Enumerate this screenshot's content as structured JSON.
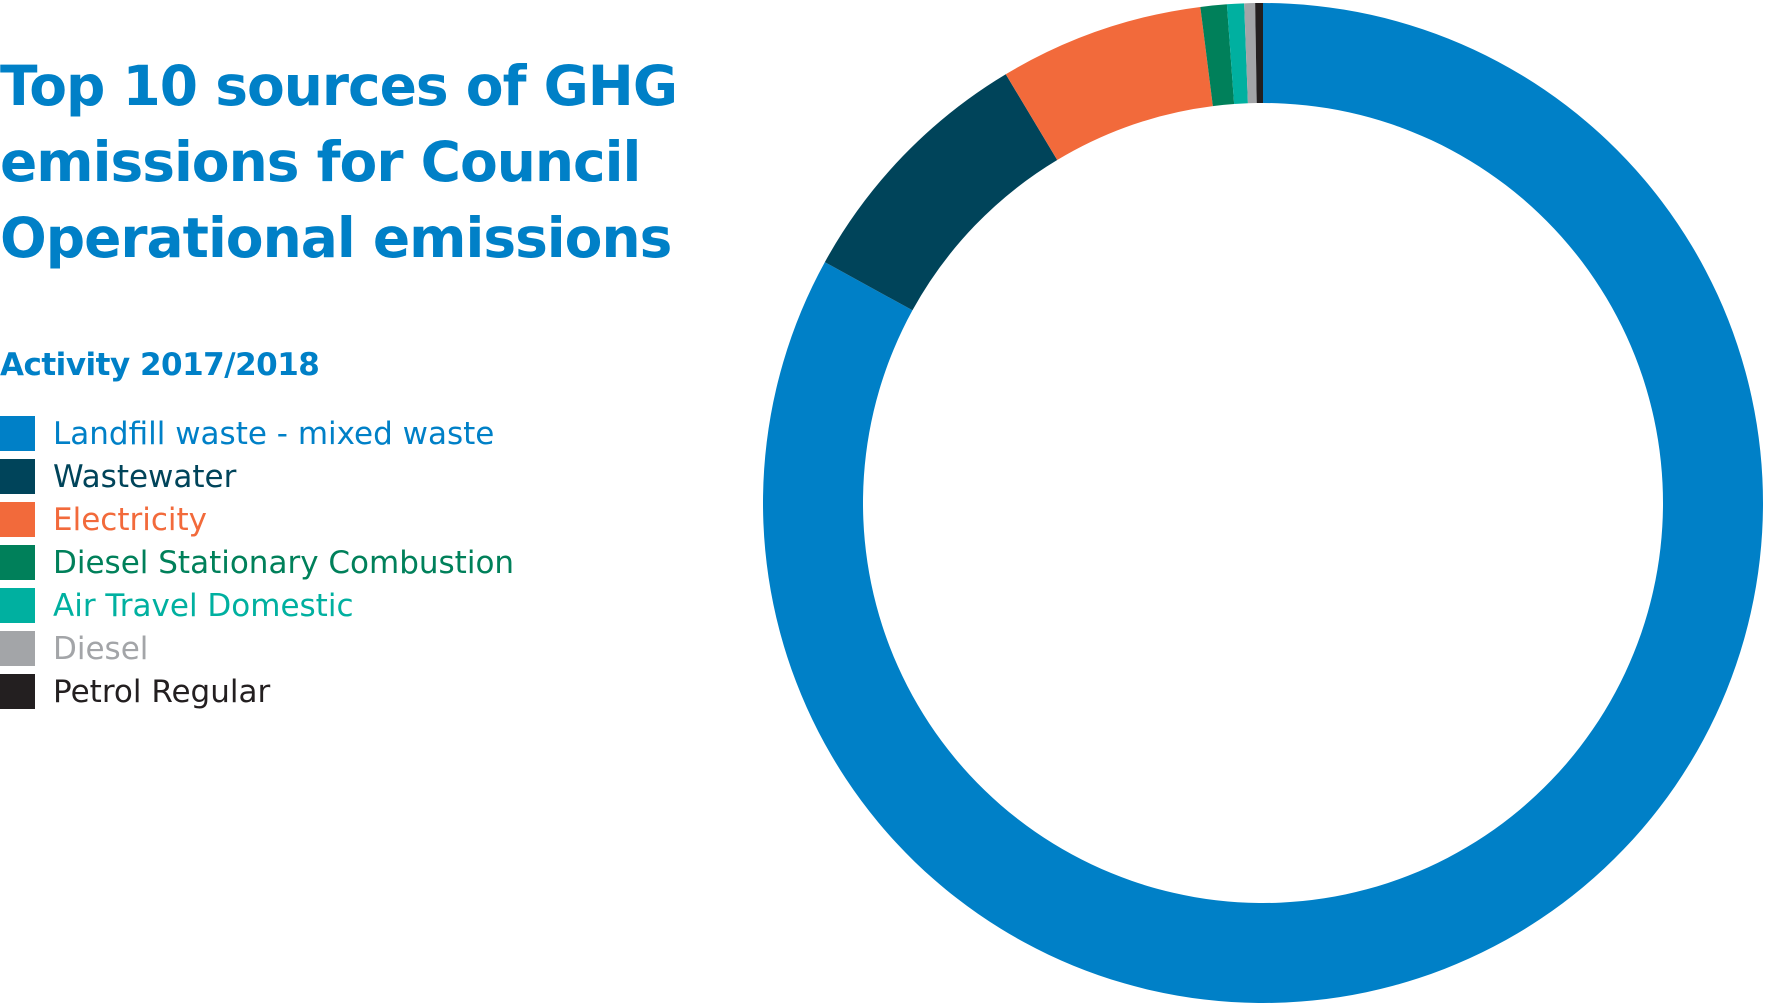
{
  "chart_data": {
    "type": "pie",
    "title": "Top 10 sources of GHG emissions for Council Operational emissions",
    "subtitle": "Activity 2017/2018",
    "legend_position": "left",
    "donut": true,
    "series": [
      {
        "name": "Landfill waste - mixed waste",
        "value": 83.0,
        "color": "#0080c7"
      },
      {
        "name": "Wastewater",
        "value": 8.4,
        "color": "#00445a"
      },
      {
        "name": "Electricity",
        "value": 6.6,
        "color": "#f26a3b"
      },
      {
        "name": "Diesel Stationary Combustion",
        "value": 0.85,
        "color": "#00805a"
      },
      {
        "name": "Air Travel Domestic",
        "value": 0.55,
        "color": "#00b0a0"
      },
      {
        "name": "Diesel",
        "value": 0.35,
        "color": "#a3a5a8"
      },
      {
        "name": "Petrol Regular",
        "value": 0.25,
        "color": "#231f20"
      }
    ]
  }
}
